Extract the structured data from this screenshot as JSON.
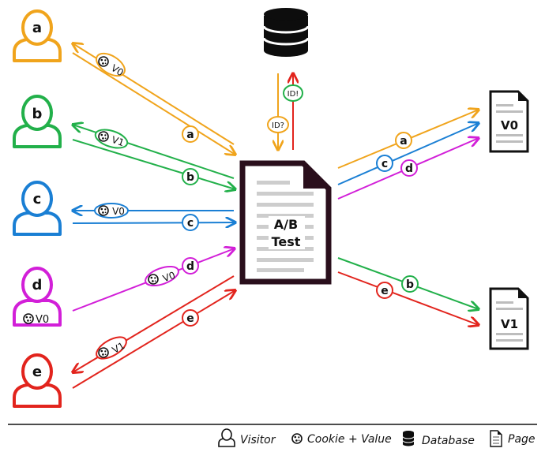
{
  "colors": {
    "a": "#f0a41c",
    "b": "#22b04a",
    "c": "#1a7fd4",
    "d": "#d21fd8",
    "e": "#e2241d",
    "dark": "#2a0f1c",
    "db": "#0d0d0d"
  },
  "visitors": [
    {
      "id": "a",
      "label": "a",
      "color": "#f0a41c"
    },
    {
      "id": "b",
      "label": "b",
      "color": "#22b04a"
    },
    {
      "id": "c",
      "label": "c",
      "color": "#1a7fd4"
    },
    {
      "id": "d",
      "label": "d",
      "color": "#d21fd8",
      "cookie": "V0"
    },
    {
      "id": "e",
      "label": "e",
      "color": "#e2241d"
    }
  ],
  "response_cookies": {
    "a": "V0",
    "b": "V1",
    "c": "V0",
    "e": "V1"
  },
  "request_cookies": {
    "d": "V0"
  },
  "ab_test": {
    "line1": "A/B",
    "line2": "Test"
  },
  "db_labels": {
    "query": "ID?",
    "answer": "ID!"
  },
  "pages": {
    "v0": "V0",
    "v1": "V1"
  },
  "legend": {
    "visitor": "Visitor",
    "cookie": "Cookie  + Value",
    "database": "Database",
    "page": "Page"
  },
  "icons": [
    "person-icon",
    "cookie-icon",
    "database-icon",
    "page-icon"
  ]
}
